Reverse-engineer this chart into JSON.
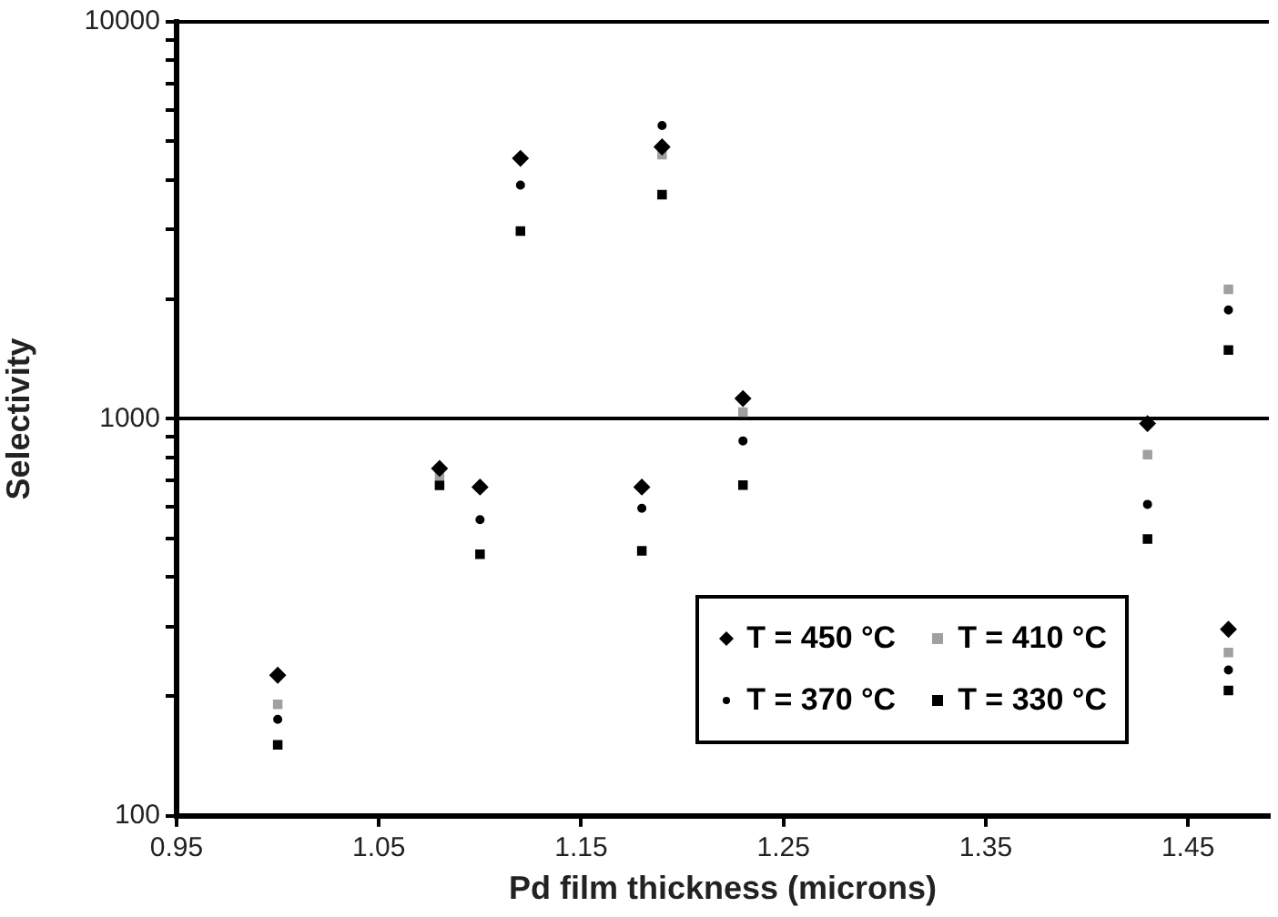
{
  "chart_data": {
    "type": "scatter",
    "xlabel": "Pd film thickness (microns)",
    "ylabel": "Selectivity",
    "log": "y",
    "grid": "y",
    "legend": "bottom right",
    "xlim": [
      0.95,
      1.49
    ],
    "xticks": [
      0.95,
      1.05,
      1.15,
      1.25,
      1.35,
      1.45
    ],
    "ylim": [
      100,
      10000
    ],
    "yticks": [
      100,
      {
        "value": 200,
        "label": null
      },
      {
        "value": 300,
        "label": null
      },
      {
        "value": 400,
        "label": null
      },
      {
        "value": 500,
        "label": null
      },
      {
        "value": 600,
        "label": null
      },
      {
        "value": 700,
        "label": null
      },
      {
        "value": 800,
        "label": null
      },
      {
        "value": 900,
        "label": null
      },
      1000,
      {
        "value": 2000,
        "label": null
      },
      {
        "value": 3000,
        "label": null
      },
      {
        "value": 4000,
        "label": null
      },
      {
        "value": 5000,
        "label": null
      },
      {
        "value": 6000,
        "label": null
      },
      {
        "value": 7000,
        "label": null
      },
      {
        "value": 8000,
        "label": null
      },
      {
        "value": 9000,
        "label": null
      },
      10000
    ],
    "series": [
      {
        "name": "T = 450 °C",
        "color": "#000000",
        "marker": "diamond",
        "x": [
          1.0,
          1.08,
          1.1,
          1.12,
          1.18,
          1.19,
          1.23,
          1.43,
          1.47
        ],
        "values": [
          226,
          750,
          673,
          4530,
          673,
          4840,
          1125,
          973,
          295
        ]
      },
      {
        "name": "T = 410 °C",
        "color": "#a0a0a0",
        "marker": "square",
        "x": [
          1.0,
          1.08,
          1.1,
          1.12,
          1.18,
          1.19,
          1.23,
          1.43,
          1.47,
          1.47
        ],
        "values": [
          191,
          720,
          null,
          null,
          null,
          4630,
          1040,
          813,
          2120,
          258
        ]
      },
      {
        "name": "T = 370 °C",
        "color": "#000000",
        "marker": "circle",
        "x": [
          1.0,
          1.08,
          1.1,
          1.12,
          1.18,
          1.19,
          1.23,
          1.43,
          1.47,
          1.47
        ],
        "values": [
          175,
          null,
          557,
          3880,
          595,
          5480,
          880,
          609,
          1880,
          233
        ]
      },
      {
        "name": "T = 330 °C",
        "color": "#000000",
        "marker": "square",
        "x": [
          1.0,
          1.08,
          1.1,
          1.12,
          1.18,
          1.19,
          1.23,
          1.43,
          1.47,
          1.47
        ],
        "values": [
          151,
          680,
          456,
          2970,
          465,
          3670,
          681,
          498,
          1490,
          207
        ]
      }
    ]
  }
}
